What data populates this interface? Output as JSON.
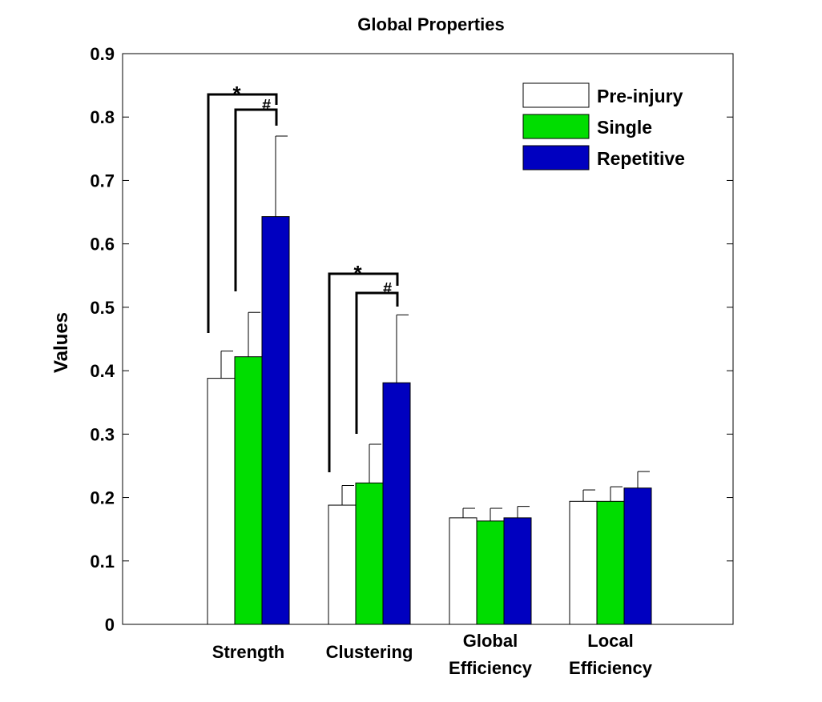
{
  "chart_data": {
    "type": "bar",
    "title": "Global Properties",
    "xlabel": "",
    "ylabel": "Values",
    "ylim": [
      0,
      0.9
    ],
    "yticks": [
      "0",
      "0.1",
      "0.2",
      "0.3",
      "0.4",
      "0.5",
      "0.6",
      "0.7",
      "0.8",
      "0.9"
    ],
    "categories": [
      [
        "Strength"
      ],
      [
        "Clustering"
      ],
      [
        "Global",
        "Efficiency"
      ],
      [
        "Local",
        "Efficiency"
      ]
    ],
    "series": [
      {
        "name": "Pre-injury",
        "color": "#ffffff",
        "values": [
          0.388,
          0.188,
          0.168,
          0.194
        ],
        "errors": [
          0.043,
          0.031,
          0.015,
          0.018
        ]
      },
      {
        "name": "Single",
        "color": "#00dd00",
        "values": [
          0.422,
          0.223,
          0.163,
          0.194
        ],
        "errors": [
          0.07,
          0.061,
          0.02,
          0.023
        ]
      },
      {
        "name": "Repetitive",
        "color": "#0000c0",
        "values": [
          0.643,
          0.381,
          0.168,
          0.215
        ],
        "errors": [
          0.127,
          0.107,
          0.018,
          0.026
        ]
      }
    ],
    "legend_position": "top-right",
    "grid": false,
    "annotations": [
      {
        "category": 0,
        "from": 0,
        "to": 2,
        "symbol": "*",
        "level": "outer"
      },
      {
        "category": 0,
        "from": 1,
        "to": 2,
        "symbol": "#",
        "level": "inner"
      },
      {
        "category": 1,
        "from": 0,
        "to": 2,
        "symbol": "*",
        "level": "outer"
      },
      {
        "category": 1,
        "from": 1,
        "to": 2,
        "symbol": "#",
        "level": "inner"
      }
    ]
  }
}
